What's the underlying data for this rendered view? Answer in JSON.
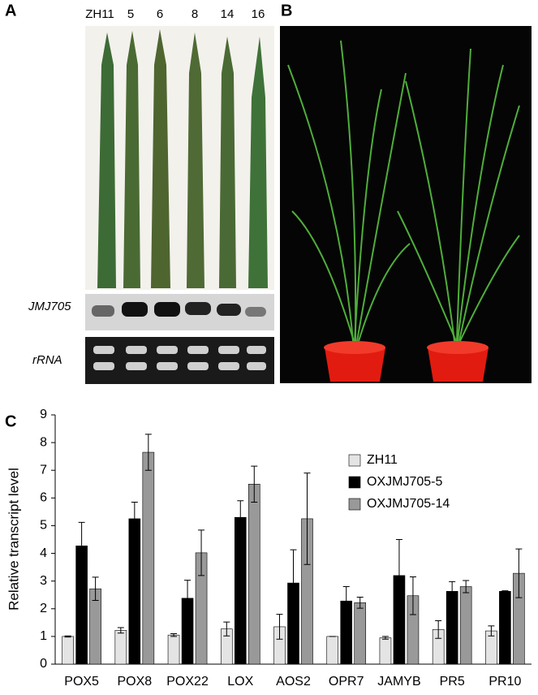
{
  "panels": {
    "a": {
      "label": "A",
      "lanes": [
        "ZH11",
        "5",
        "6",
        "8",
        "14",
        "16"
      ],
      "blot_labels": [
        "JMJ705",
        "rRNA"
      ]
    },
    "b": {
      "label": "B"
    },
    "c": {
      "label": "C"
    }
  },
  "chart_data": {
    "type": "bar",
    "y_label": "Relative transcript level",
    "categories": [
      "POX5",
      "POX8",
      "POX22",
      "LOX",
      "AOS2",
      "OPR7",
      "JAMYB",
      "PR5",
      "PR10"
    ],
    "series": [
      {
        "name": "ZH11",
        "color": "#e4e4e4",
        "values": [
          1.0,
          1.22,
          1.05,
          1.27,
          1.35,
          1.0,
          0.95,
          1.25,
          1.2
        ],
        "errors": [
          0.02,
          0.1,
          0.05,
          0.25,
          0.45,
          0,
          0.05,
          0.32,
          0.18
        ]
      },
      {
        "name": "OXJMJ705-5",
        "color": "#000000",
        "values": [
          4.27,
          5.25,
          2.38,
          5.3,
          2.93,
          2.28,
          3.2,
          2.63,
          2.63
        ],
        "errors": [
          0.85,
          0.6,
          0.65,
          0.6,
          1.2,
          0.52,
          1.3,
          0.35,
          0.02
        ]
      },
      {
        "name": "OXJMJ705-14",
        "color": "#999999",
        "values": [
          2.72,
          7.65,
          4.02,
          6.5,
          5.25,
          2.22,
          2.47,
          2.8,
          3.28
        ],
        "errors": [
          0.42,
          0.65,
          0.82,
          0.65,
          1.65,
          0.2,
          0.68,
          0.22,
          0.88
        ]
      }
    ],
    "ylim": [
      0,
      9
    ],
    "yticks": [
      0,
      1,
      2,
      3,
      4,
      5,
      6,
      7,
      8,
      9
    ],
    "legend": "upper right"
  }
}
